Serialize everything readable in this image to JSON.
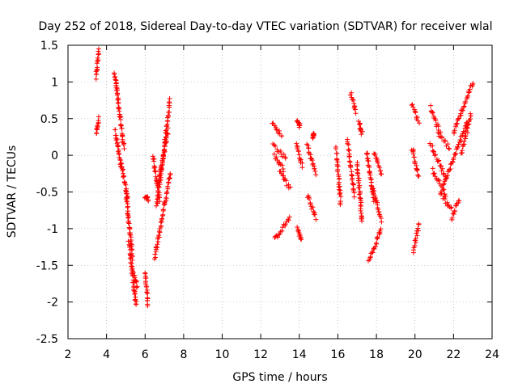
{
  "chart_data": {
    "type": "scatter",
    "title": "Day 252 of 2018, Sidereal Day-to-day VTEC variation (SDTVAR) for receiver wlal",
    "xlabel": "GPS time / hours",
    "ylabel": "SDTVAR / TECUs",
    "xlim": [
      2,
      24
    ],
    "ylim": [
      -2.5,
      1.5
    ],
    "xticks": [
      "2",
      "4",
      "6",
      "8",
      "10",
      "12",
      "14",
      "16",
      "18",
      "20",
      "22",
      "24"
    ],
    "yticks": [
      "1.5",
      "1",
      "0.5",
      "0",
      "-0.5",
      "-1",
      "-1.5",
      "-2",
      "-2.5"
    ],
    "grid": true,
    "marker": "+",
    "series": [
      {
        "name": "SDTVAR",
        "color": "#ff0000",
        "segments": [
          {
            "x0": 3.45,
            "x1": 3.6,
            "y0": 1.05,
            "y1": 1.45
          },
          {
            "x0": 3.45,
            "x1": 3.6,
            "y0": 0.3,
            "y1": 0.5
          },
          {
            "x0": 4.4,
            "x1": 4.55,
            "y0": 1.15,
            "y1": 0.9
          },
          {
            "x0": 4.5,
            "x1": 4.9,
            "y0": 0.95,
            "y1": 0.1
          },
          {
            "x0": 4.45,
            "x1": 4.75,
            "y0": 0.35,
            "y1": -0.15
          },
          {
            "x0": 4.75,
            "x1": 5.1,
            "y0": -0.1,
            "y1": -0.6
          },
          {
            "x0": 5.0,
            "x1": 5.35,
            "y0": -0.5,
            "y1": -1.4
          },
          {
            "x0": 5.15,
            "x1": 5.55,
            "y0": -1.2,
            "y1": -2.05
          },
          {
            "x0": 5.35,
            "x1": 5.6,
            "y0": -1.55,
            "y1": -1.8
          },
          {
            "x0": 6.0,
            "x1": 6.15,
            "y0": -1.6,
            "y1": -2.05
          },
          {
            "x0": 6.0,
            "x1": 6.15,
            "y0": -0.55,
            "y1": -0.6
          },
          {
            "x0": 6.4,
            "x1": 6.75,
            "y0": 0.0,
            "y1": -0.6
          },
          {
            "x0": 6.5,
            "x1": 7.3,
            "y0": -1.4,
            "y1": -0.25
          },
          {
            "x0": 6.6,
            "x1": 7.3,
            "y0": -0.7,
            "y1": 0.75
          },
          {
            "x0": 6.7,
            "x1": 7.2,
            "y0": -0.35,
            "y1": 0.35
          },
          {
            "x0": 12.6,
            "x1": 13.1,
            "y0": 0.45,
            "y1": 0.25
          },
          {
            "x0": 12.65,
            "x1": 13.3,
            "y0": 0.15,
            "y1": -0.05
          },
          {
            "x0": 12.7,
            "x1": 13.2,
            "y0": 0.0,
            "y1": -0.2
          },
          {
            "x0": 13.0,
            "x1": 13.5,
            "y0": -0.2,
            "y1": -0.45
          },
          {
            "x0": 12.7,
            "x1": 13.5,
            "y0": -1.15,
            "y1": -0.85
          },
          {
            "x0": 13.9,
            "x1": 14.05,
            "y0": 0.45,
            "y1": 0.4
          },
          {
            "x0": 13.85,
            "x1": 14.15,
            "y0": 0.15,
            "y1": -0.15
          },
          {
            "x0": 13.9,
            "x1": 14.1,
            "y0": -1.0,
            "y1": -1.15
          },
          {
            "x0": 14.4,
            "x1": 14.85,
            "y0": 0.15,
            "y1": -0.25
          },
          {
            "x0": 14.45,
            "x1": 14.85,
            "y0": -0.55,
            "y1": -0.85
          },
          {
            "x0": 14.7,
            "x1": 14.75,
            "y0": 0.25,
            "y1": 0.3
          },
          {
            "x0": 15.9,
            "x1": 16.15,
            "y0": 0.1,
            "y1": -0.65
          },
          {
            "x0": 16.5,
            "x1": 16.85,
            "y0": 0.2,
            "y1": -0.55
          },
          {
            "x0": 16.65,
            "x1": 16.95,
            "y0": 0.85,
            "y1": 0.6
          },
          {
            "x0": 17.1,
            "x1": 17.25,
            "y0": 0.45,
            "y1": 0.3
          },
          {
            "x0": 17.0,
            "x1": 17.25,
            "y0": -0.1,
            "y1": -0.9
          },
          {
            "x0": 17.5,
            "x1": 17.85,
            "y0": 0.05,
            "y1": -0.6
          },
          {
            "x0": 17.6,
            "x1": 18.25,
            "y0": -1.45,
            "y1": -1.0
          },
          {
            "x0": 17.8,
            "x1": 18.25,
            "y0": -0.45,
            "y1": -0.9
          },
          {
            "x0": 17.9,
            "x1": 18.25,
            "y0": 0.05,
            "y1": -0.25
          },
          {
            "x0": 19.85,
            "x1": 20.2,
            "y0": 0.7,
            "y1": 0.45
          },
          {
            "x0": 19.85,
            "x1": 20.2,
            "y0": 0.1,
            "y1": -0.3
          },
          {
            "x0": 19.9,
            "x1": 20.2,
            "y0": -1.3,
            "y1": -0.95
          },
          {
            "x0": 20.8,
            "x1": 21.3,
            "y0": 0.65,
            "y1": 0.3
          },
          {
            "x0": 20.8,
            "x1": 21.6,
            "y0": 0.15,
            "y1": -0.3
          },
          {
            "x0": 20.9,
            "x1": 21.6,
            "y0": -0.2,
            "y1": -0.55
          },
          {
            "x0": 21.2,
            "x1": 21.8,
            "y0": 0.3,
            "y1": 0.1
          },
          {
            "x0": 21.3,
            "x1": 21.9,
            "y0": -0.5,
            "y1": -0.75
          },
          {
            "x0": 21.9,
            "x1": 22.3,
            "y0": -0.85,
            "y1": -0.6
          },
          {
            "x0": 21.5,
            "x1": 22.7,
            "y0": -0.4,
            "y1": 0.45
          },
          {
            "x0": 22.0,
            "x1": 23.0,
            "y0": 0.3,
            "y1": 1.0
          },
          {
            "x0": 22.4,
            "x1": 22.9,
            "y0": 0.0,
            "y1": 0.55
          }
        ]
      }
    ]
  }
}
